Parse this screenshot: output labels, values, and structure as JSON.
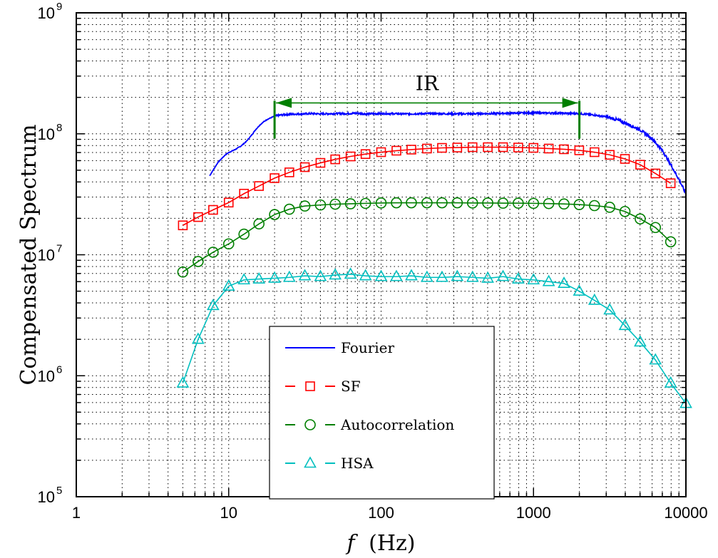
{
  "chart_data": {
    "type": "line",
    "title": "",
    "xlabel": "f (Hz)",
    "xlabel_var": "f",
    "xlabel_unit": "(Hz)",
    "ylabel": "Compensated Spectrum",
    "xscale": "log",
    "yscale": "log",
    "xlim": [
      1,
      10000
    ],
    "ylim": [
      100000,
      1000000000
    ],
    "grid": true,
    "legend_position": "lower-center",
    "x_ticks": [
      {
        "value": 1,
        "label": "1"
      },
      {
        "value": 10,
        "label": "10"
      },
      {
        "value": 100,
        "label": "100"
      },
      {
        "value": 1000,
        "label": "1000"
      },
      {
        "value": 10000,
        "label": "10000"
      }
    ],
    "y_ticks": [
      {
        "value": 100000,
        "base": "10",
        "exp": "5"
      },
      {
        "value": 1000000,
        "base": "10",
        "exp": "6"
      },
      {
        "value": 10000000,
        "base": "10",
        "exp": "7"
      },
      {
        "value": 100000000,
        "base": "10",
        "exp": "8"
      },
      {
        "value": 1000000000,
        "base": "10",
        "exp": "9"
      }
    ],
    "annotations": [
      {
        "type": "range-arrow",
        "label": "IR",
        "x_start": 20,
        "x_end": 2000,
        "y": 180000000,
        "color": "#007f00"
      }
    ],
    "series": [
      {
        "name": "Fourier",
        "color": "#0000ff",
        "marker": "none",
        "style": "solid",
        "x": [
          7.5,
          8.5,
          9.5,
          10,
          11,
          12,
          13,
          14,
          15,
          16,
          17,
          18,
          19,
          20,
          22,
          25,
          30,
          35,
          40,
          50,
          60,
          70,
          80,
          100,
          150,
          200,
          300,
          500,
          700,
          1000,
          1500,
          2000,
          2500,
          3000,
          3500,
          4000,
          5000,
          6000,
          7000,
          8000,
          9000,
          10000
        ],
        "y": [
          45000000,
          58000000,
          67000000,
          70000000,
          74000000,
          79000000,
          86000000,
          96000000,
          108000000,
          118000000,
          126000000,
          132000000,
          136000000,
          140000000,
          143000000,
          145000000,
          146000000,
          147000000,
          146000000,
          147000000,
          147000000,
          148000000,
          146000000,
          147000000,
          146000000,
          147000000,
          146000000,
          147000000,
          148000000,
          149000000,
          148000000,
          147000000,
          143000000,
          138000000,
          131000000,
          123000000,
          108000000,
          91000000,
          73000000,
          55000000,
          42000000,
          32000000
        ]
      },
      {
        "name": "SF",
        "color": "#ff0000",
        "marker": "square",
        "style": "solid",
        "x": [
          5,
          6.3,
          7.9,
          10,
          12.6,
          15.8,
          20,
          25,
          31.6,
          40,
          50,
          63,
          79,
          100,
          126,
          158,
          200,
          251,
          316,
          398,
          501,
          631,
          794,
          1000,
          1259,
          1585,
          1995,
          2512,
          3162,
          3981,
          5012,
          6310,
          7943
        ],
        "y": [
          17500000,
          20500000,
          23500000,
          27000000,
          32000000,
          37000000,
          43000000,
          48000000,
          53000000,
          57500000,
          61500000,
          65000000,
          68000000,
          70500000,
          72500000,
          74000000,
          75500000,
          76500000,
          77000000,
          77500000,
          77500000,
          77500000,
          77000000,
          76500000,
          75500000,
          74500000,
          73000000,
          70500000,
          67000000,
          62000000,
          55500000,
          47000000,
          39000000
        ]
      },
      {
        "name": "Autocorrelation",
        "color": "#007f00",
        "marker": "circle",
        "style": "solid",
        "x": [
          5,
          6.3,
          7.9,
          10,
          12.6,
          15.8,
          20,
          25,
          31.6,
          40,
          50,
          63,
          79,
          100,
          126,
          158,
          200,
          251,
          316,
          398,
          501,
          631,
          794,
          1000,
          1259,
          1585,
          1995,
          2512,
          3162,
          3981,
          5012,
          6310,
          7943
        ],
        "y": [
          7200000,
          8800000,
          10500000,
          12300000,
          14800000,
          18000000,
          21500000,
          23800000,
          25300000,
          25800000,
          26200000,
          26400000,
          26600000,
          26800000,
          26900000,
          26900000,
          26900000,
          26900000,
          26900000,
          26800000,
          26800000,
          26700000,
          26700000,
          26600000,
          26500000,
          26300000,
          26000000,
          25500000,
          24700000,
          22800000,
          19800000,
          16800000,
          12800000
        ]
      },
      {
        "name": "HSA",
        "color": "#00bfbf",
        "marker": "triangle",
        "style": "solid",
        "x": [
          5,
          6.3,
          7.9,
          10,
          12.6,
          15.8,
          20,
          25,
          31.6,
          40,
          50,
          63,
          79,
          100,
          126,
          158,
          200,
          251,
          316,
          398,
          501,
          631,
          794,
          1000,
          1259,
          1585,
          1995,
          2512,
          3162,
          3981,
          5012,
          6310,
          7943,
          10000
        ],
        "y": [
          870000,
          2000000,
          3800000,
          5500000,
          6200000,
          6300000,
          6400000,
          6500000,
          6700000,
          6600000,
          6800000,
          6900000,
          6700000,
          6600000,
          6600000,
          6700000,
          6500000,
          6500000,
          6600000,
          6500000,
          6400000,
          6600000,
          6300000,
          6200000,
          6000000,
          5800000,
          5000000,
          4200000,
          3500000,
          2600000,
          1900000,
          1350000,
          870000,
          590000
        ]
      }
    ]
  }
}
